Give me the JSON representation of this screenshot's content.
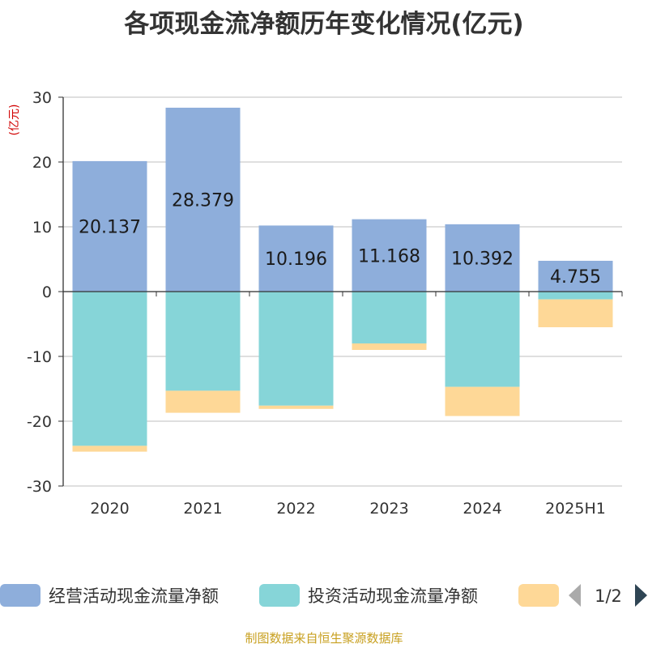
{
  "chart_data": {
    "type": "bar",
    "stacked": true,
    "title": "各项现金流净额历年变化情况(亿元)",
    "ylabel": "(亿元)",
    "categories": [
      "2020",
      "2021",
      "2022",
      "2023",
      "2024",
      "2025H1"
    ],
    "ylim": [
      -30,
      30
    ],
    "yticks": [
      30,
      20,
      10,
      0,
      -10,
      -20,
      -30
    ],
    "grid": true,
    "series": [
      {
        "name": "经营活动现金流量净额",
        "color": "#8eaedb",
        "values": [
          20.137,
          28.379,
          10.196,
          11.168,
          10.392,
          4.755
        ],
        "labels": [
          "20.137",
          "28.379",
          "10.196",
          "11.168",
          "10.392",
          "4.755"
        ]
      },
      {
        "name": "投资活动现金流量净额",
        "color": "#86d5d8",
        "values": [
          -23.8,
          -15.3,
          -17.6,
          -8.0,
          -14.7,
          -1.2
        ]
      },
      {
        "name": "",
        "color": "#fed897",
        "values": [
          -0.9,
          -3.4,
          -0.5,
          -1.0,
          -4.5,
          -4.3
        ]
      }
    ],
    "legend": {
      "position": "bottom",
      "page": "1/2"
    }
  },
  "footer": "制图数据来自恒生聚源数据库"
}
